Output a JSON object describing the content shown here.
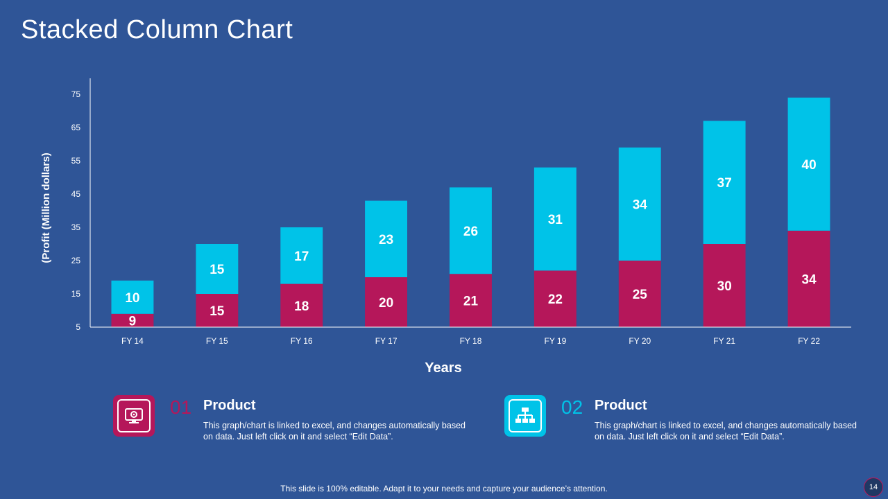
{
  "slide": {
    "title": "Stacked Column Chart",
    "footer": "This slide is 100% editable. Adapt it to your needs and capture your audience’s attention.",
    "page_number": "14"
  },
  "colors": {
    "background": "#2f5597",
    "series1": "#b5175a",
    "series2": "#00c3e8"
  },
  "chart_data": {
    "type": "bar",
    "stacked": true,
    "categories": [
      "FY 14",
      "FY 15",
      "FY 16",
      "FY 17",
      "FY 18",
      "FY 19",
      "FY 20",
      "FY 21",
      "FY 22"
    ],
    "series": [
      {
        "values": [
          9,
          15,
          18,
          20,
          21,
          22,
          25,
          30,
          34
        ],
        "color": "#b5175a"
      },
      {
        "values": [
          10,
          15,
          17,
          23,
          26,
          31,
          34,
          37,
          40
        ],
        "color": "#00c3e8"
      }
    ],
    "xlabel": "Years",
    "ylabel": "(Profit  (Million dollars)",
    "ylim": [
      5,
      75
    ],
    "yticks": [
      5,
      15,
      25,
      35,
      45,
      55,
      65,
      75
    ],
    "grid": false
  },
  "legend": [
    {
      "number": "01",
      "heading": "Product",
      "text": "This graph/chart is linked to excel, and changes automatically based on data. Just left click on it and select “Edit Data”.",
      "icon": "monitor-gear-icon",
      "color": "#b5175a"
    },
    {
      "number": "02",
      "heading": "Product",
      "text": "This graph/chart is linked to excel, and changes automatically based on data. Just left click on it and select “Edit Data”.",
      "icon": "network-diagram-icon",
      "color": "#00c3e8"
    }
  ]
}
